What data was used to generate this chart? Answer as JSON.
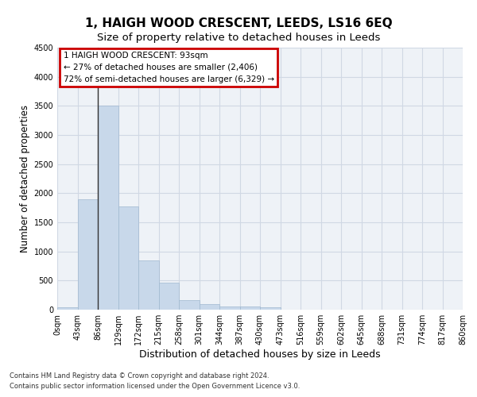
{
  "title": "1, HAIGH WOOD CRESCENT, LEEDS, LS16 6EQ",
  "subtitle": "Size of property relative to detached houses in Leeds",
  "xlabel": "Distribution of detached houses by size in Leeds",
  "ylabel": "Number of detached properties",
  "bar_values": [
    40,
    1900,
    3500,
    1770,
    850,
    460,
    160,
    95,
    60,
    50,
    40,
    0,
    0,
    0,
    0,
    0,
    0,
    0,
    0,
    0
  ],
  "bar_color": "#c8d8ea",
  "bar_edge_color": "#a0b8d0",
  "x_labels": [
    "0sqm",
    "43sqm",
    "86sqm",
    "129sqm",
    "172sqm",
    "215sqm",
    "258sqm",
    "301sqm",
    "344sqm",
    "387sqm",
    "430sqm",
    "473sqm",
    "516sqm",
    "559sqm",
    "602sqm",
    "645sqm",
    "688sqm",
    "731sqm",
    "774sqm",
    "817sqm",
    "860sqm"
  ],
  "ylim": [
    0,
    4500
  ],
  "yticks": [
    0,
    500,
    1000,
    1500,
    2000,
    2500,
    3000,
    3500,
    4000,
    4500
  ],
  "vline_color": "#333333",
  "annotation_text": "1 HAIGH WOOD CRESCENT: 93sqm\n← 27% of detached houses are smaller (2,406)\n72% of semi-detached houses are larger (6,329) →",
  "annotation_box_color": "#cc0000",
  "footer_line1": "Contains HM Land Registry data © Crown copyright and database right 2024.",
  "footer_line2": "Contains public sector information licensed under the Open Government Licence v3.0.",
  "bg_color": "#eef2f7",
  "grid_color": "#d0d8e4",
  "title_fontsize": 11,
  "subtitle_fontsize": 9.5,
  "axis_label_fontsize": 9,
  "tick_fontsize": 7,
  "ylabel_fontsize": 8.5
}
